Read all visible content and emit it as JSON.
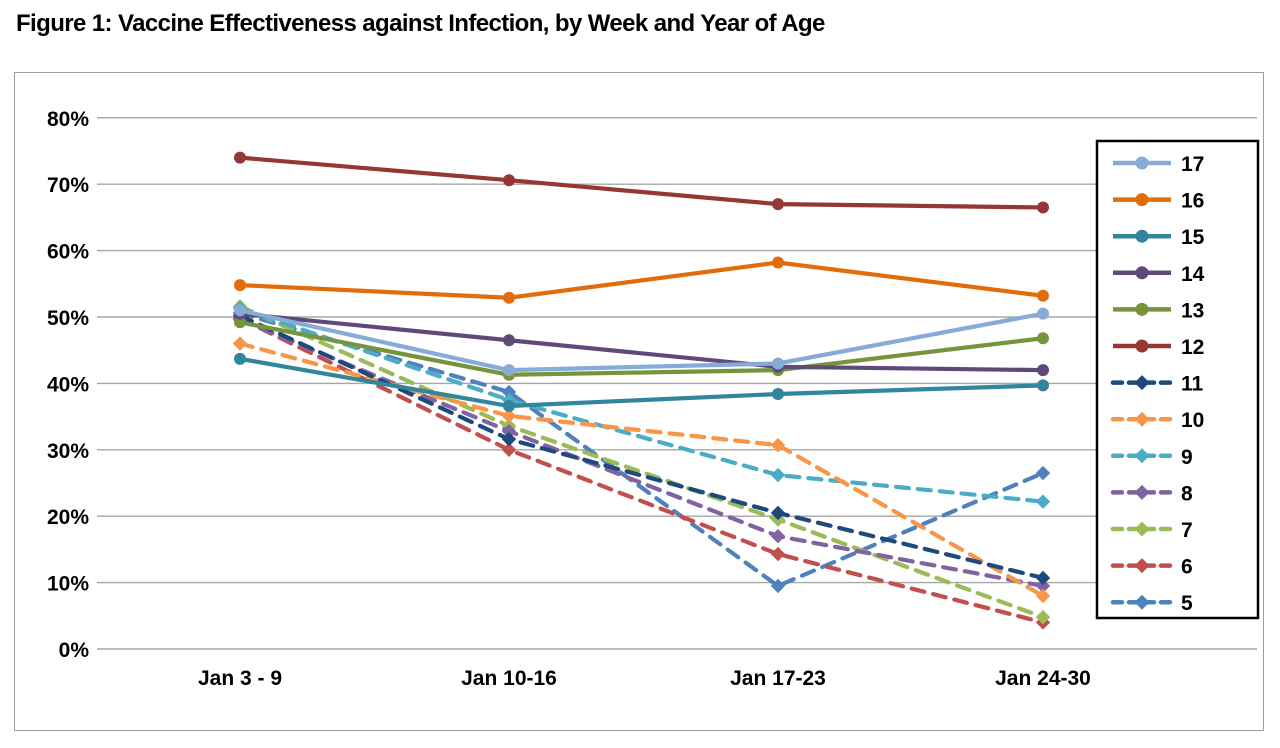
{
  "title": "Figure 1: Vaccine Effectiveness against Infection, by Week and Year of Age",
  "chart_data": {
    "type": "line",
    "title": "Figure 1: Vaccine Effectiveness against Infection, by Week and Year of Age",
    "xlabel": "",
    "ylabel": "",
    "ylim": [
      0,
      80
    ],
    "y_tick_step": 10,
    "y_ticks": [
      "0%",
      "10%",
      "20%",
      "30%",
      "40%",
      "50%",
      "60%",
      "70%",
      "80%"
    ],
    "grid": true,
    "legend_position": "right",
    "categories": [
      "Jan 3 - 9",
      "Jan 10-16",
      "Jan 17-23",
      "Jan 24-30"
    ],
    "series": [
      {
        "name": "17",
        "style": "solid",
        "color": "#86abd9",
        "values": [
          51.0,
          42.0,
          43.0,
          50.5
        ]
      },
      {
        "name": "16",
        "style": "solid",
        "color": "#e36c0a",
        "values": [
          54.8,
          52.9,
          58.2,
          53.2
        ]
      },
      {
        "name": "15",
        "style": "solid",
        "color": "#31859c",
        "values": [
          43.7,
          36.6,
          38.4,
          39.7
        ]
      },
      {
        "name": "14",
        "style": "solid",
        "color": "#5f497a",
        "values": [
          50.5,
          46.5,
          42.5,
          42.0
        ]
      },
      {
        "name": "13",
        "style": "solid",
        "color": "#77933c",
        "values": [
          49.2,
          41.3,
          42.0,
          46.8
        ]
      },
      {
        "name": "12",
        "style": "solid",
        "color": "#953735",
        "values": [
          74.0,
          70.6,
          67.0,
          66.5
        ]
      },
      {
        "name": "11",
        "style": "dashed",
        "color": "#1f497d",
        "values": [
          50.2,
          31.6,
          20.5,
          10.7
        ]
      },
      {
        "name": "10",
        "style": "dashed",
        "color": "#f79646",
        "values": [
          46.0,
          35.1,
          30.7,
          8.0
        ]
      },
      {
        "name": "9",
        "style": "dashed",
        "color": "#4bacc6",
        "values": [
          51.3,
          37.5,
          26.2,
          22.2
        ]
      },
      {
        "name": "8",
        "style": "dashed",
        "color": "#8064a2",
        "values": [
          49.6,
          32.8,
          17.0,
          9.5
        ]
      },
      {
        "name": "7",
        "style": "dashed",
        "color": "#9bbb59",
        "values": [
          51.6,
          33.6,
          19.5,
          4.8
        ]
      },
      {
        "name": "6",
        "style": "dashed",
        "color": "#c0504d",
        "values": [
          49.8,
          30.0,
          14.3,
          4.0
        ]
      },
      {
        "name": "5",
        "style": "dashed",
        "color": "#4f81bd",
        "values": [
          50.6,
          38.7,
          9.5,
          26.5
        ]
      }
    ],
    "colors": {
      "grid": "#a6a6a6",
      "panel_border": "#9d9d9d",
      "legend_border": "#000000",
      "text": "#000000",
      "background": "#ffffff"
    }
  }
}
